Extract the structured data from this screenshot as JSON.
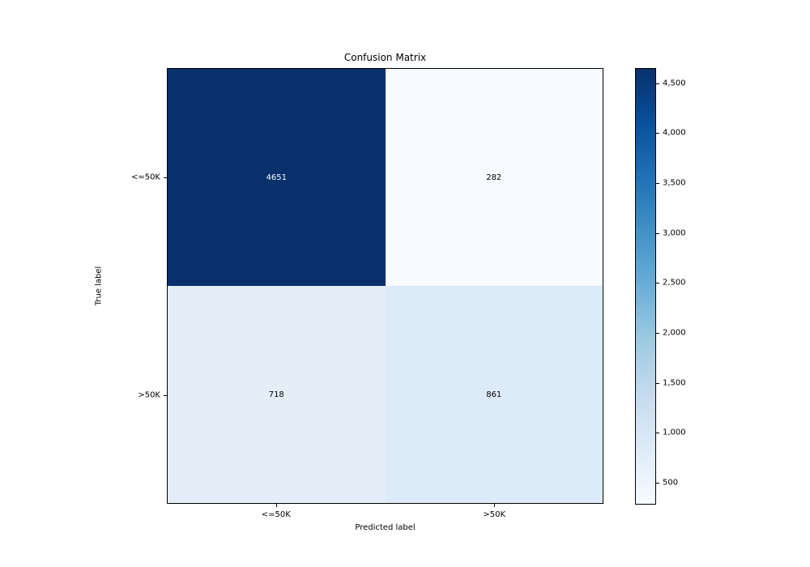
{
  "figure": {
    "background": "#ffffff"
  },
  "chart_data": {
    "type": "heatmap",
    "title": "Confusion Matrix",
    "xlabel": "Predicted label",
    "ylabel": "True label",
    "x_categories": [
      "<=50K",
      ">50K"
    ],
    "y_categories": [
      "<=50K",
      ">50K"
    ],
    "matrix": [
      [
        4651,
        282
      ],
      [
        718,
        861
      ]
    ],
    "vmin": 282,
    "vmax": 4651,
    "colormap": "Blues",
    "colormap_stops": [
      "#f7fbff",
      "#deebf7",
      "#c6dbef",
      "#9ecae1",
      "#6baed6",
      "#4292c6",
      "#2171b5",
      "#08519c",
      "#08306b"
    ],
    "cell_text_color_on_dark": "#ffffff",
    "cell_text_color_on_light": "#000000",
    "grid": false,
    "legend_position": "right-colorbar",
    "colorbar_ticks": [
      {
        "value": 500,
        "label": "500"
      },
      {
        "value": 1000,
        "label": "1,000"
      },
      {
        "value": 1500,
        "label": "1,500"
      },
      {
        "value": 2000,
        "label": "2,000"
      },
      {
        "value": 2500,
        "label": "2,500"
      },
      {
        "value": 3000,
        "label": "3,000"
      },
      {
        "value": 3500,
        "label": "3,500"
      },
      {
        "value": 4000,
        "label": "4,000"
      },
      {
        "value": 4500,
        "label": "4,500"
      }
    ]
  }
}
